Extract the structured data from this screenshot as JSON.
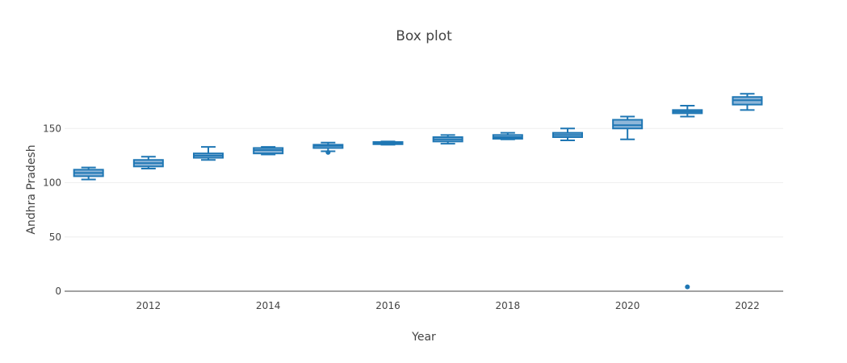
{
  "chart_data": {
    "type": "box",
    "title": "Box plot",
    "xlabel": "Year",
    "ylabel": "Andhra Pradesh",
    "xlim": [
      2010.6,
      2022.6
    ],
    "ylim": [
      0,
      200
    ],
    "x_ticks": [
      2012,
      2014,
      2016,
      2018,
      2020,
      2022
    ],
    "y_ticks": [
      0,
      50,
      100,
      150
    ],
    "grid": true,
    "legend": "none",
    "color": "#1f77b4",
    "fill": "#8fb7d9",
    "boxes": [
      {
        "x": 2011,
        "min": 103,
        "q1": 106,
        "median": 109,
        "q3": 112,
        "max": 114,
        "outliers": []
      },
      {
        "x": 2012,
        "min": 113,
        "q1": 115,
        "median": 118,
        "q3": 121,
        "max": 124,
        "outliers": []
      },
      {
        "x": 2013,
        "min": 121,
        "q1": 123,
        "median": 125,
        "q3": 127,
        "max": 133,
        "outliers": []
      },
      {
        "x": 2014,
        "min": 126,
        "q1": 127,
        "median": 130,
        "q3": 132,
        "max": 133,
        "outliers": []
      },
      {
        "x": 2015,
        "min": 129,
        "q1": 132,
        "median": 134,
        "q3": 135,
        "max": 137,
        "outliers": [
          128
        ]
      },
      {
        "x": 2016,
        "min": 135,
        "q1": 135.5,
        "median": 136.5,
        "q3": 137.5,
        "max": 138,
        "outliers": []
      },
      {
        "x": 2017,
        "min": 136,
        "q1": 138,
        "median": 140,
        "q3": 142,
        "max": 144,
        "outliers": []
      },
      {
        "x": 2018,
        "min": 140,
        "q1": 140.5,
        "median": 142,
        "q3": 144,
        "max": 146,
        "outliers": []
      },
      {
        "x": 2019,
        "min": 139,
        "q1": 142,
        "median": 144,
        "q3": 146,
        "max": 150,
        "outliers": []
      },
      {
        "x": 2020,
        "min": 140,
        "q1": 150,
        "median": 153,
        "q3": 158,
        "max": 161,
        "outliers": []
      },
      {
        "x": 2021,
        "min": 161,
        "q1": 164,
        "median": 165.5,
        "q3": 167,
        "max": 171,
        "outliers": [
          4
        ]
      },
      {
        "x": 2022,
        "min": 167,
        "q1": 172,
        "median": 176,
        "q3": 179,
        "max": 182,
        "outliers": []
      }
    ]
  }
}
